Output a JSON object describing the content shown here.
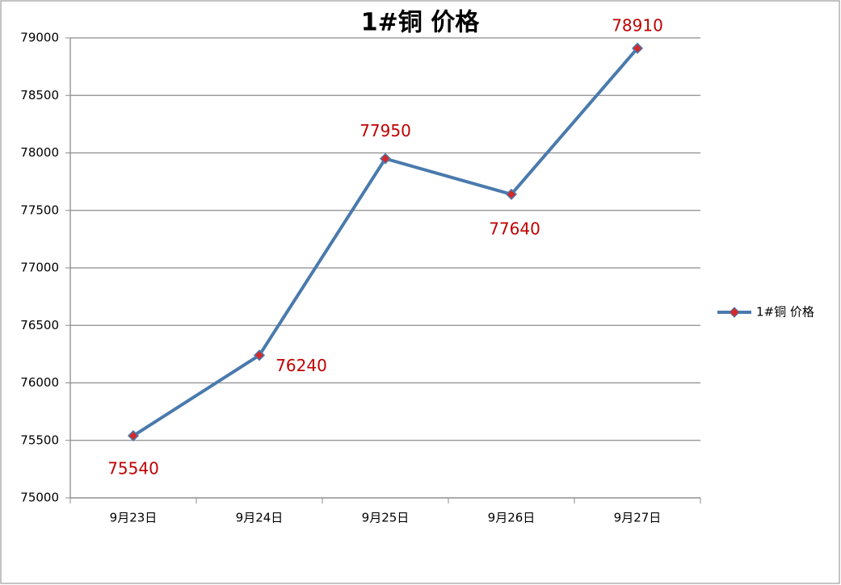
{
  "chart_data": {
    "type": "line",
    "title": "1#铜 价格",
    "categories": [
      "9月23日",
      "9月24日",
      "9月25日",
      "9月26日",
      "9月27日"
    ],
    "series": [
      {
        "name": "1#铜 价格",
        "color": "#4a7aad",
        "marker_color": "#d42a2a",
        "label_color": "#c00000",
        "values": [
          75540,
          76240,
          77950,
          77640,
          78910
        ]
      }
    ],
    "ylim": [
      75000,
      79000
    ],
    "yticks": [
      75000,
      75500,
      76000,
      76500,
      77000,
      77500,
      78000,
      78500,
      79000
    ],
    "grid": true,
    "legend": "right"
  }
}
